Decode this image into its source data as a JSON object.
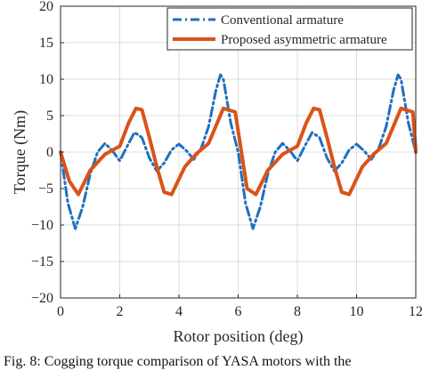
{
  "chart_data": {
    "type": "line",
    "xlabel": "Rotor position (deg)",
    "ylabel": "Torque (Nm)",
    "xlim": [
      0,
      12
    ],
    "ylim": [
      -20,
      20
    ],
    "xticks": [
      0,
      2,
      4,
      6,
      8,
      10,
      12
    ],
    "yticks": [
      -20,
      -15,
      -10,
      -5,
      0,
      5,
      10,
      15,
      20
    ],
    "xtick_labels": [
      "0",
      "2",
      "4",
      "6",
      "8",
      "10",
      "12"
    ],
    "ytick_labels": [
      "−20",
      "−15",
      "−10",
      "−5",
      "0",
      "5",
      "10",
      "15",
      "20"
    ],
    "grid": true,
    "legend_position": "top-right",
    "series": [
      {
        "name": "Conventional armature",
        "color": "#1f6fbf",
        "style": "dash-dot",
        "x": [
          0,
          0.25,
          0.5,
          0.75,
          1.0,
          1.25,
          1.5,
          1.75,
          2.0,
          2.25,
          2.5,
          2.75,
          3.0,
          3.25,
          3.5,
          3.75,
          4.0,
          4.25,
          4.5,
          4.75,
          5.0,
          5.25,
          5.4,
          5.5,
          5.75,
          6.0,
          6.25,
          6.5,
          6.75,
          7.0,
          7.25,
          7.5,
          7.75,
          8.0,
          8.25,
          8.5,
          8.75,
          9.0,
          9.25,
          9.5,
          9.75,
          10.0,
          10.25,
          10.5,
          10.75,
          11.0,
          11.25,
          11.4,
          11.5,
          11.75,
          12.0
        ],
        "y": [
          0,
          -7,
          -10.5,
          -7.5,
          -3,
          0,
          1.2,
          0.2,
          -1.2,
          0.8,
          2.7,
          2,
          -0.8,
          -2.6,
          -1.5,
          0.3,
          1.1,
          0.2,
          -1.0,
          0.5,
          3.5,
          8.5,
          10.6,
          10,
          4,
          0,
          -7,
          -10.5,
          -7.5,
          -3,
          0,
          1.2,
          0.2,
          -1.2,
          0.8,
          2.7,
          2,
          -0.8,
          -2.6,
          -1.5,
          0.3,
          1.1,
          0.2,
          -1.0,
          0.5,
          3.5,
          8.5,
          10.6,
          10,
          4,
          0
        ]
      },
      {
        "name": "Proposed asymmetric armature",
        "color": "#d95319",
        "style": "solid",
        "x": [
          0,
          0.3,
          0.6,
          1.0,
          1.5,
          2.0,
          2.3,
          2.55,
          2.75,
          3.0,
          3.25,
          3.5,
          3.75,
          4.2,
          4.6,
          5.0,
          5.5,
          5.9,
          6.3,
          6.6,
          7.0,
          7.5,
          8.0,
          8.3,
          8.55,
          8.75,
          9.0,
          9.25,
          9.5,
          9.75,
          10.2,
          10.6,
          11.0,
          11.5,
          11.9,
          12.0
        ],
        "y": [
          0,
          -4,
          -5.8,
          -2.5,
          -0.3,
          0.8,
          4,
          6,
          5.8,
          2,
          -2,
          -5.5,
          -5.8,
          -2,
          -0.2,
          1.2,
          6,
          5.5,
          -5,
          -5.8,
          -2.5,
          -0.3,
          0.8,
          4,
          6,
          5.8,
          2,
          -2,
          -5.5,
          -5.8,
          -2,
          -0.2,
          1.2,
          6,
          5.5,
          0
        ]
      }
    ]
  },
  "caption": "Fig. 8: Cogging torque comparison of YASA motors with the"
}
